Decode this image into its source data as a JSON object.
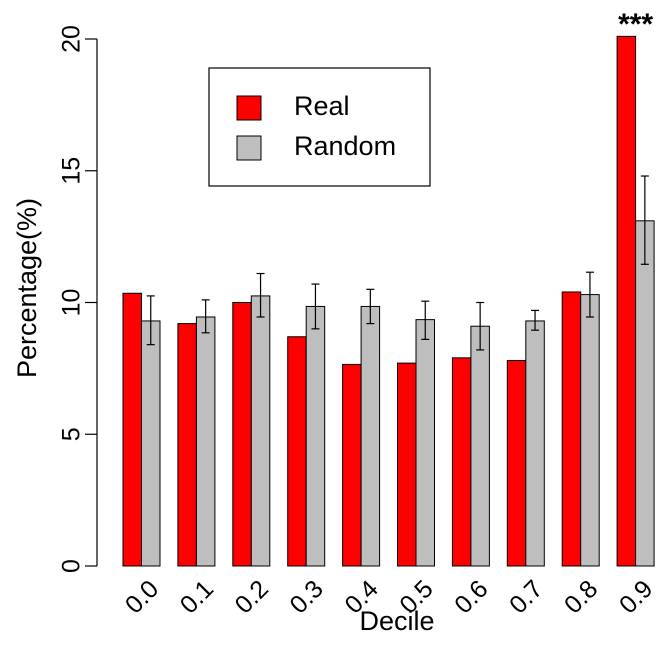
{
  "chart_data": {
    "type": "bar",
    "title": "",
    "xlabel": "Decile",
    "ylabel": "Percentage(%)",
    "categories": [
      "0.0",
      "0.1",
      "0.2",
      "0.3",
      "0.4",
      "0.5",
      "0.6",
      "0.7",
      "0.8",
      "0.9"
    ],
    "series": [
      {
        "name": "Real",
        "color": "#ff0000",
        "values": [
          10.35,
          9.2,
          10.0,
          8.7,
          7.65,
          7.7,
          7.9,
          7.8,
          10.4,
          20.1
        ]
      },
      {
        "name": "Random",
        "color": "#bebebe",
        "values": [
          9.3,
          9.45,
          10.25,
          9.85,
          9.85,
          9.35,
          9.1,
          9.3,
          10.3,
          13.1
        ],
        "error": [
          [
            8.4,
            10.25
          ],
          [
            8.85,
            10.1
          ],
          [
            9.45,
            11.1
          ],
          [
            9.0,
            10.7
          ],
          [
            9.2,
            10.5
          ],
          [
            8.6,
            10.05
          ],
          [
            8.2,
            10.0
          ],
          [
            8.95,
            9.7
          ],
          [
            9.45,
            11.15
          ],
          [
            11.45,
            14.8
          ]
        ]
      }
    ],
    "ylim": [
      0,
      20
    ],
    "yticks": [
      0,
      5,
      10,
      15,
      20
    ],
    "grid": false,
    "legend_position": "top-left",
    "annotations": [
      {
        "text": "***",
        "category": "0.9"
      }
    ]
  }
}
